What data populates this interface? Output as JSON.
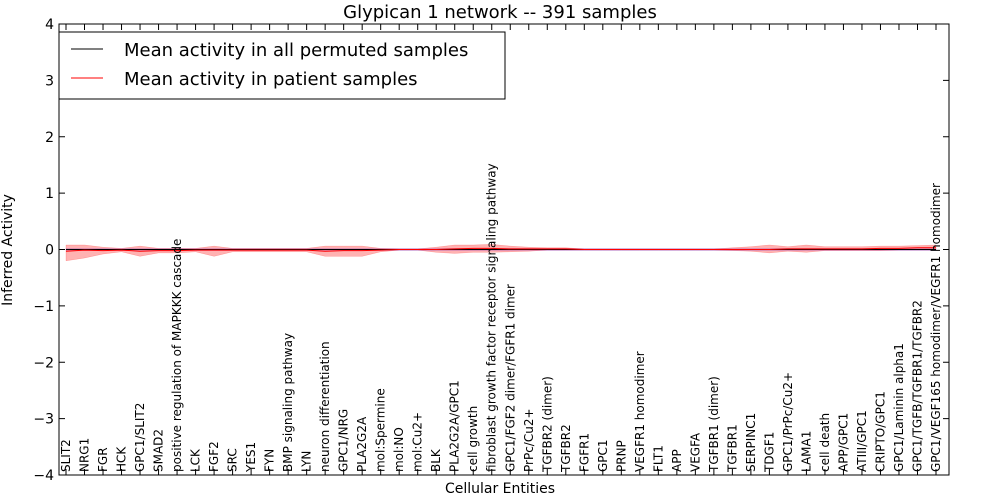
{
  "chart_data": {
    "type": "line",
    "title": "Glypican 1 network -- 391 samples",
    "xlabel": "Cellular Entities",
    "ylabel": "Inferred Activity",
    "ylim": [
      -4,
      4
    ],
    "yticks": [
      4,
      3,
      2,
      1,
      0,
      -1,
      -2,
      -3,
      -4
    ],
    "ytick_labels": [
      "4",
      "3",
      "2",
      "1",
      "0",
      "−1",
      "−2",
      "−3",
      "−4"
    ],
    "grid": false,
    "legend_position": "top-left",
    "categories": [
      "SLIT2",
      "NRG1",
      "FGR",
      "HCK",
      "GPC1/SLIT2",
      "SMAD2",
      "positive regulation of MAPKKK cascade",
      "LCK",
      "FGF2",
      "SRC",
      "YES1",
      "FYN",
      "BMP signaling pathway",
      "LYN",
      "neuron differentiation",
      "GPC1/NRG",
      "PLA2G2A",
      "mol:Spermine",
      "mol:NO",
      "mol:Cu2+",
      "BLK",
      "PLA2G2A/GPC1",
      "cell growth",
      "fibroblast growth factor receptor signaling pathway",
      "GPC1/FGF2 dimer/FGFR1 dimer",
      "PrPc/Cu2+",
      "TGFBR2 (dimer)",
      "TGFBR2",
      "FGFR1",
      "GPC1",
      "PRNP",
      "VEGFR1 homodimer",
      "FLT1",
      "APP",
      "VEGFA",
      "TGFBR1 (dimer)",
      "TGFBR1",
      "SERPINC1",
      "TDGF1",
      "GPC1/PrPc/Cu2+",
      "LAMA1",
      "cell death",
      "APP/GPC1",
      "ATIII/GPC1",
      "CRIPTO/GPC1",
      "GPC1/Laminin alpha1",
      "GPC1/TGFB/TGFBR1/TGFBR2",
      "GPC1/VEGF165 homodimer/VEGFR1 homodimer"
    ],
    "series": [
      {
        "name": "Mean activity in all permuted samples",
        "color": "#000000",
        "values": [
          0.0,
          0.0,
          0.0,
          0.0,
          0.0,
          0.0,
          0.0,
          0.0,
          0.0,
          0.0,
          0.0,
          0.0,
          0.0,
          0.0,
          0.0,
          0.0,
          0.0,
          0.0,
          0.0,
          0.0,
          0.0,
          0.0,
          0.0,
          0.0,
          0.0,
          0.0,
          0.0,
          0.0,
          0.0,
          0.0,
          0.0,
          0.0,
          0.0,
          0.0,
          0.0,
          0.0,
          0.0,
          0.0,
          0.0,
          0.0,
          0.0,
          0.0,
          0.0,
          0.0,
          0.0,
          0.0,
          0.0,
          0.0
        ],
        "band_upper": [
          0.02,
          0.02,
          0.02,
          0.02,
          0.02,
          0.02,
          0.02,
          0.02,
          0.02,
          0.02,
          0.02,
          0.02,
          0.02,
          0.02,
          0.02,
          0.02,
          0.02,
          0.02,
          0.02,
          0.02,
          0.02,
          0.02,
          0.02,
          0.02,
          0.02,
          0.02,
          0.02,
          0.02,
          0.02,
          0.02,
          0.02,
          0.02,
          0.02,
          0.02,
          0.02,
          0.02,
          0.02,
          0.02,
          0.02,
          0.02,
          0.02,
          0.02,
          0.02,
          0.02,
          0.02,
          0.02,
          0.02,
          0.02
        ],
        "band_lower": [
          -0.02,
          -0.02,
          -0.02,
          -0.02,
          -0.02,
          -0.02,
          -0.02,
          -0.02,
          -0.02,
          -0.02,
          -0.02,
          -0.02,
          -0.02,
          -0.02,
          -0.02,
          -0.02,
          -0.02,
          -0.02,
          -0.02,
          -0.02,
          -0.02,
          -0.02,
          -0.02,
          -0.02,
          -0.02,
          -0.02,
          -0.02,
          -0.02,
          -0.02,
          -0.02,
          -0.02,
          -0.02,
          -0.02,
          -0.02,
          -0.02,
          -0.02,
          -0.02,
          -0.02,
          -0.02,
          -0.02,
          -0.02,
          -0.02,
          -0.02,
          -0.02,
          -0.02,
          -0.02,
          -0.02,
          -0.02
        ]
      },
      {
        "name": "Mean activity in patient samples",
        "color": "#ff0000",
        "values": [
          -0.03,
          -0.01,
          -0.02,
          -0.01,
          -0.03,
          -0.02,
          -0.02,
          -0.01,
          -0.01,
          -0.01,
          -0.01,
          -0.01,
          -0.01,
          -0.01,
          -0.03,
          -0.02,
          -0.02,
          -0.01,
          0.0,
          0.0,
          0.0,
          0.01,
          0.02,
          0.02,
          0.01,
          0.01,
          0.01,
          0.01,
          0.0,
          0.0,
          0.0,
          0.0,
          0.0,
          0.0,
          0.0,
          0.0,
          0.0,
          0.0,
          0.0,
          0.01,
          0.01,
          0.01,
          0.01,
          0.01,
          0.02,
          0.02,
          0.03,
          0.03
        ],
        "band_upper": [
          0.08,
          0.08,
          0.04,
          0.02,
          0.06,
          0.02,
          0.02,
          0.02,
          0.06,
          0.02,
          0.02,
          0.02,
          0.02,
          0.02,
          0.06,
          0.06,
          0.06,
          0.02,
          0.01,
          0.01,
          0.04,
          0.08,
          0.08,
          0.09,
          0.06,
          0.04,
          0.03,
          0.03,
          0.01,
          0.01,
          0.01,
          0.01,
          0.01,
          0.01,
          0.01,
          0.01,
          0.03,
          0.05,
          0.08,
          0.05,
          0.08,
          0.05,
          0.05,
          0.05,
          0.06,
          0.06,
          0.07,
          0.08
        ],
        "band_lower": [
          -0.2,
          -0.15,
          -0.08,
          -0.04,
          -0.12,
          -0.06,
          -0.06,
          -0.04,
          -0.12,
          -0.04,
          -0.04,
          -0.04,
          -0.04,
          -0.04,
          -0.12,
          -0.12,
          -0.12,
          -0.04,
          -0.01,
          -0.01,
          -0.05,
          -0.07,
          -0.05,
          -0.05,
          -0.04,
          -0.03,
          -0.01,
          -0.01,
          -0.01,
          -0.01,
          -0.01,
          -0.01,
          -0.01,
          -0.01,
          -0.01,
          -0.01,
          -0.02,
          -0.03,
          -0.06,
          -0.03,
          -0.05,
          -0.02,
          -0.02,
          -0.02,
          -0.02,
          -0.01,
          -0.01,
          -0.01
        ]
      }
    ]
  }
}
